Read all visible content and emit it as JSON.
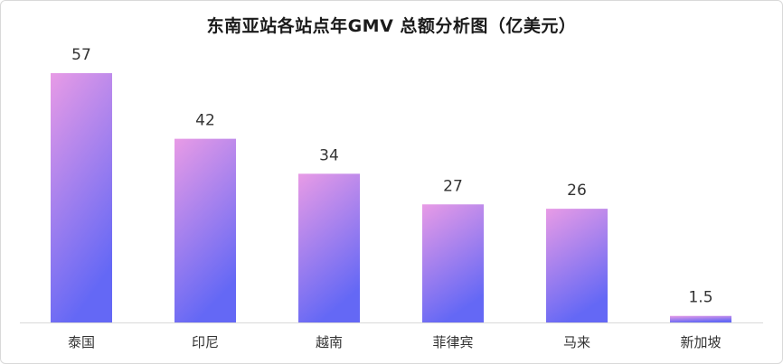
{
  "chart_data": {
    "type": "bar",
    "title": "东南亚站各站点年GMV 总额分析图（亿美元）",
    "categories": [
      "泰国",
      "印尼",
      "越南",
      "菲律宾",
      "马来",
      "新加坡"
    ],
    "values": [
      57,
      42,
      34,
      27,
      26,
      1.5
    ],
    "value_labels": [
      "57",
      "42",
      "34",
      "27",
      "26",
      "1.5"
    ],
    "xlabel": "",
    "ylabel": "",
    "ylim": [
      0,
      57
    ],
    "grid": false,
    "legend": "none",
    "colors": {
      "bar_top": "#e89be6",
      "bar_bottom": "#6468f5",
      "axis": "#d9d9d9",
      "text": "#333333"
    }
  }
}
